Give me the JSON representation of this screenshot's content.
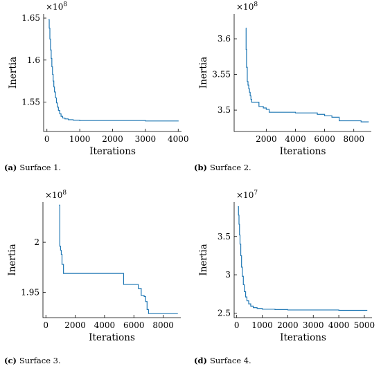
{
  "chart_data": [
    {
      "type": "line",
      "caption_tag": "(a)",
      "caption_text": "Surface 1.",
      "xlabel": "Iterations",
      "ylabel": "Inertia",
      "exponent_base": "×10",
      "exponent_power": "8",
      "xlim": [
        -100,
        4100
      ],
      "ylim": [
        1.515,
        1.655
      ],
      "xticks": [
        0,
        1000,
        2000,
        3000,
        4000
      ],
      "xtick_labels": [
        "0",
        "1000",
        "2000",
        "3000",
        "4000"
      ],
      "yticks": [
        1.55,
        1.6,
        1.65
      ],
      "ytick_labels": [
        "1.55",
        "1.6",
        "1.65"
      ],
      "x": [
        50,
        70,
        90,
        110,
        130,
        150,
        170,
        190,
        210,
        230,
        260,
        290,
        320,
        350,
        390,
        430,
        480,
        550,
        650,
        800,
        1000,
        1500,
        2000,
        2900,
        3000,
        3500,
        4000
      ],
      "y": [
        1.648,
        1.638,
        1.625,
        1.612,
        1.602,
        1.592,
        1.583,
        1.575,
        1.568,
        1.562,
        1.555,
        1.549,
        1.544,
        1.54,
        1.536,
        1.533,
        1.531,
        1.53,
        1.529,
        1.5285,
        1.528,
        1.528,
        1.528,
        1.528,
        1.5275,
        1.5275,
        1.527
      ]
    },
    {
      "type": "line",
      "caption_tag": "(b)",
      "caption_text": "Surface 2.",
      "xlabel": "Iterations",
      "ylabel": "Inertia",
      "exponent_base": "×10",
      "exponent_power": "8",
      "xlim": [
        -200,
        9200
      ],
      "ylim": [
        3.47,
        3.635
      ],
      "xticks": [
        2000,
        4000,
        6000,
        8000
      ],
      "xtick_labels": [
        "2000",
        "4000",
        "6000",
        "8000"
      ],
      "yticks": [
        3.5,
        3.55,
        3.6
      ],
      "ytick_labels": [
        "3.5",
        "3.55",
        "3.6"
      ],
      "x": [
        600,
        620,
        650,
        700,
        750,
        800,
        850,
        900,
        950,
        1000,
        1100,
        1200,
        1500,
        1800,
        2000,
        2200,
        3000,
        4000,
        5300,
        5500,
        6000,
        6500,
        7000,
        8000,
        8500,
        9000
      ],
      "y": [
        3.615,
        3.585,
        3.56,
        3.54,
        3.535,
        3.53,
        3.525,
        3.52,
        3.515,
        3.511,
        3.511,
        3.511,
        3.505,
        3.503,
        3.501,
        3.497,
        3.497,
        3.496,
        3.496,
        3.494,
        3.492,
        3.49,
        3.485,
        3.485,
        3.4835,
        3.483
      ]
    },
    {
      "type": "line",
      "caption_tag": "(c)",
      "caption_text": "Surface 3.",
      "xlabel": "Iterations",
      "ylabel": "Inertia",
      "exponent_base": "×10",
      "exponent_power": "8",
      "xlim": [
        -200,
        9200
      ],
      "ylim": [
        1.925,
        2.04
      ],
      "xticks": [
        0,
        2000,
        4000,
        6000,
        8000
      ],
      "xtick_labels": [
        "0",
        "2000",
        "4000",
        "6000",
        "8000"
      ],
      "yticks": [
        1.95,
        2.0
      ],
      "ytick_labels": [
        "1.95",
        "2"
      ],
      "x": [
        900,
        950,
        1000,
        1050,
        1100,
        1200,
        4300,
        5300,
        6300,
        6500,
        6700,
        6800,
        6900,
        7000,
        9000
      ],
      "y": [
        2.037,
        1.996,
        1.992,
        1.988,
        1.978,
        1.969,
        1.969,
        1.958,
        1.954,
        1.947,
        1.946,
        1.941,
        1.933,
        1.929,
        1.929
      ]
    },
    {
      "type": "line",
      "caption_tag": "(d)",
      "caption_text": "Surface 4.",
      "xlabel": "Iterations",
      "ylabel": "Inertia",
      "exponent_base": "×10",
      "exponent_power": "7",
      "xlim": [
        -100,
        5300
      ],
      "ylim": [
        2.44,
        3.95
      ],
      "xticks": [
        0,
        1000,
        2000,
        3000,
        4000,
        5000
      ],
      "xtick_labels": [
        "0",
        "1000",
        "2000",
        "3000",
        "4000",
        "5000"
      ],
      "yticks": [
        2.5,
        3,
        3.5
      ],
      "ytick_labels": [
        "2.5",
        "3",
        "3.5"
      ],
      "x": [
        50,
        70,
        90,
        110,
        130,
        160,
        190,
        220,
        260,
        300,
        350,
        400,
        470,
        550,
        650,
        800,
        1000,
        1500,
        2000,
        3000,
        4000,
        5000,
        5100
      ],
      "y": [
        3.89,
        3.78,
        3.66,
        3.52,
        3.4,
        3.25,
        3.1,
        2.98,
        2.87,
        2.78,
        2.71,
        2.66,
        2.62,
        2.59,
        2.57,
        2.56,
        2.55,
        2.545,
        2.54,
        2.54,
        2.535,
        2.535,
        2.53
      ]
    }
  ]
}
